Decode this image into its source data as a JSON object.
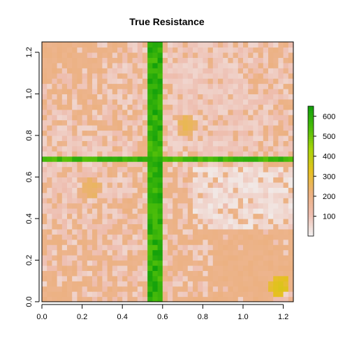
{
  "chart_data": {
    "type": "heatmap",
    "title": "True Resistance",
    "xlabel": "",
    "ylabel": "",
    "xlim": [
      0,
      1.25
    ],
    "ylim": [
      0,
      1.25
    ],
    "x_ticks": [
      "0.0",
      "0.2",
      "0.4",
      "0.6",
      "0.8",
      "1.0",
      "1.2"
    ],
    "x_tick_values": [
      0.0,
      0.2,
      0.4,
      0.6,
      0.8,
      1.0,
      1.2
    ],
    "y_ticks": [
      "0.0",
      "0.2",
      "0.4",
      "0.6",
      "0.8",
      "1.0",
      "1.2"
    ],
    "y_tick_values": [
      0.0,
      0.2,
      0.4,
      0.6,
      0.8,
      1.0,
      1.2
    ],
    "grid": false,
    "legend_position": "right",
    "legend": {
      "range": [
        1,
        650
      ],
      "ticks": [
        "100",
        "200",
        "300",
        "400",
        "500",
        "600"
      ],
      "tick_values": [
        100,
        200,
        300,
        400,
        500,
        600
      ],
      "colors": [
        "#f2f2f2",
        "#eebeb0",
        "#ecb07e",
        "#e6c020",
        "#a9d40a",
        "#4cbd0a",
        "#11a00b"
      ]
    },
    "grid_cells": 50,
    "features": {
      "vertical_barrier": {
        "x_from": 0.525,
        "x_to": 0.6,
        "value": 590
      },
      "horizontal_barrier": {
        "y_from": 0.675,
        "y_to": 0.7,
        "value": 560
      },
      "background_low": 60,
      "background_mid": 185,
      "hotspots": [
        {
          "x": 1.18,
          "y": 0.08,
          "value": 330
        },
        {
          "x": 0.72,
          "y": 0.85,
          "value": 250
        },
        {
          "x": 0.25,
          "y": 0.55,
          "value": 240
        }
      ]
    }
  }
}
